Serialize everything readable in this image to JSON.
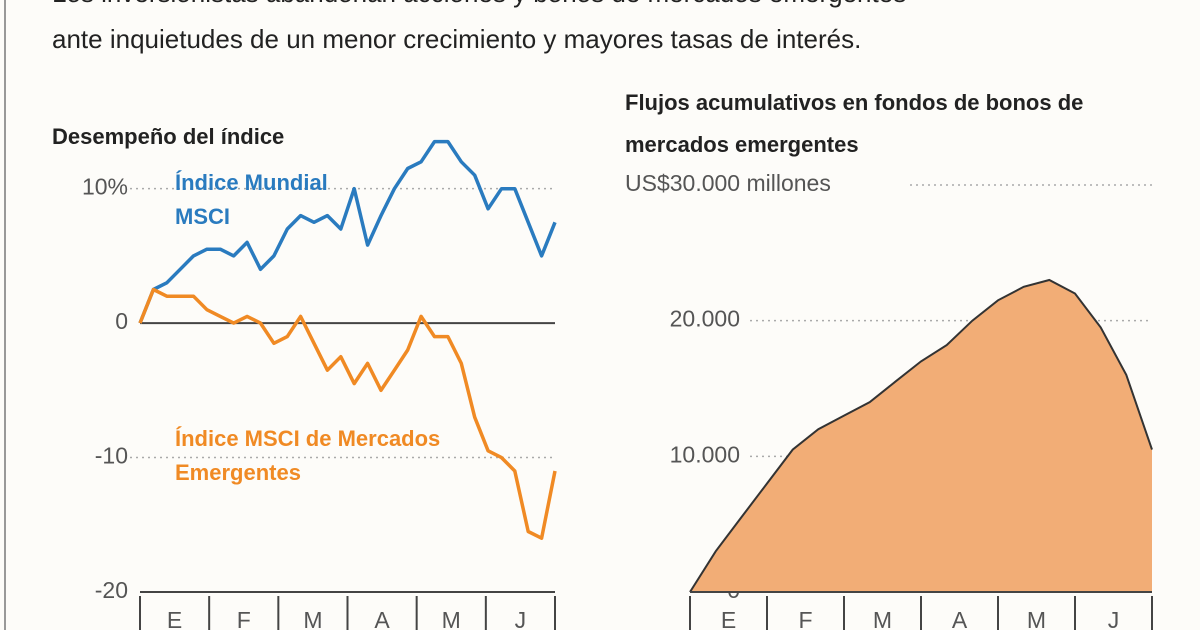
{
  "intro": {
    "lines": [
      "Los inversionistas abandonan acciones y bonos de mercados emergentes",
      "ante inquietudes de un menor crecimiento y mayores tasas de interés."
    ]
  },
  "chart_data": [
    {
      "type": "line",
      "title": "Desempeño del índice",
      "ylim": [
        -20,
        16
      ],
      "yticks": [
        {
          "value": 10,
          "label": "10%"
        },
        0,
        -10,
        -20
      ],
      "months": [
        "E",
        "F",
        "M",
        "A",
        "M",
        "J"
      ],
      "series": [
        {
          "name": "Índice Mundial MSCI",
          "color": "#2a7bbf",
          "values": [
            0,
            2.5,
            3,
            4,
            5,
            5.5,
            5.5,
            5,
            6,
            4,
            5,
            7,
            8,
            7.5,
            8,
            7,
            10,
            5.8,
            8,
            10,
            11.5,
            12,
            13.5,
            13.5,
            12,
            11,
            8.5,
            10,
            10,
            7.5,
            5,
            7.5
          ]
        },
        {
          "name": "Índice MSCI de Mercados Emergentes",
          "color": "#f08a24",
          "values": [
            0,
            2.5,
            2,
            2,
            2,
            1,
            0.5,
            0,
            0.5,
            0,
            -1.5,
            -1,
            0.5,
            -1.5,
            -3.5,
            -2.5,
            -4.5,
            -3,
            -5,
            -3.5,
            -2,
            0.5,
            -1,
            -1,
            -3,
            -7,
            -9.5,
            -10,
            -11,
            -15.5,
            -16,
            -11
          ]
        }
      ]
    },
    {
      "type": "area",
      "title": "Flujos acumulativos en fondos de bonos de mercados emergentes",
      "ylim": [
        0,
        30000
      ],
      "yticks": [
        0,
        {
          "value": 10000,
          "label": "10.000"
        },
        {
          "value": 20000,
          "label": "20.000"
        },
        {
          "value": 30000,
          "label": "US$30.000 millones"
        }
      ],
      "months": [
        "E",
        "F",
        "M",
        "A",
        "M",
        "J"
      ],
      "color": "#f2ad76",
      "values": [
        0,
        3000,
        5500,
        8000,
        10500,
        12000,
        13000,
        14000,
        15500,
        17000,
        18200,
        20000,
        21500,
        22500,
        23000,
        22000,
        19500,
        16000,
        10500
      ]
    }
  ]
}
